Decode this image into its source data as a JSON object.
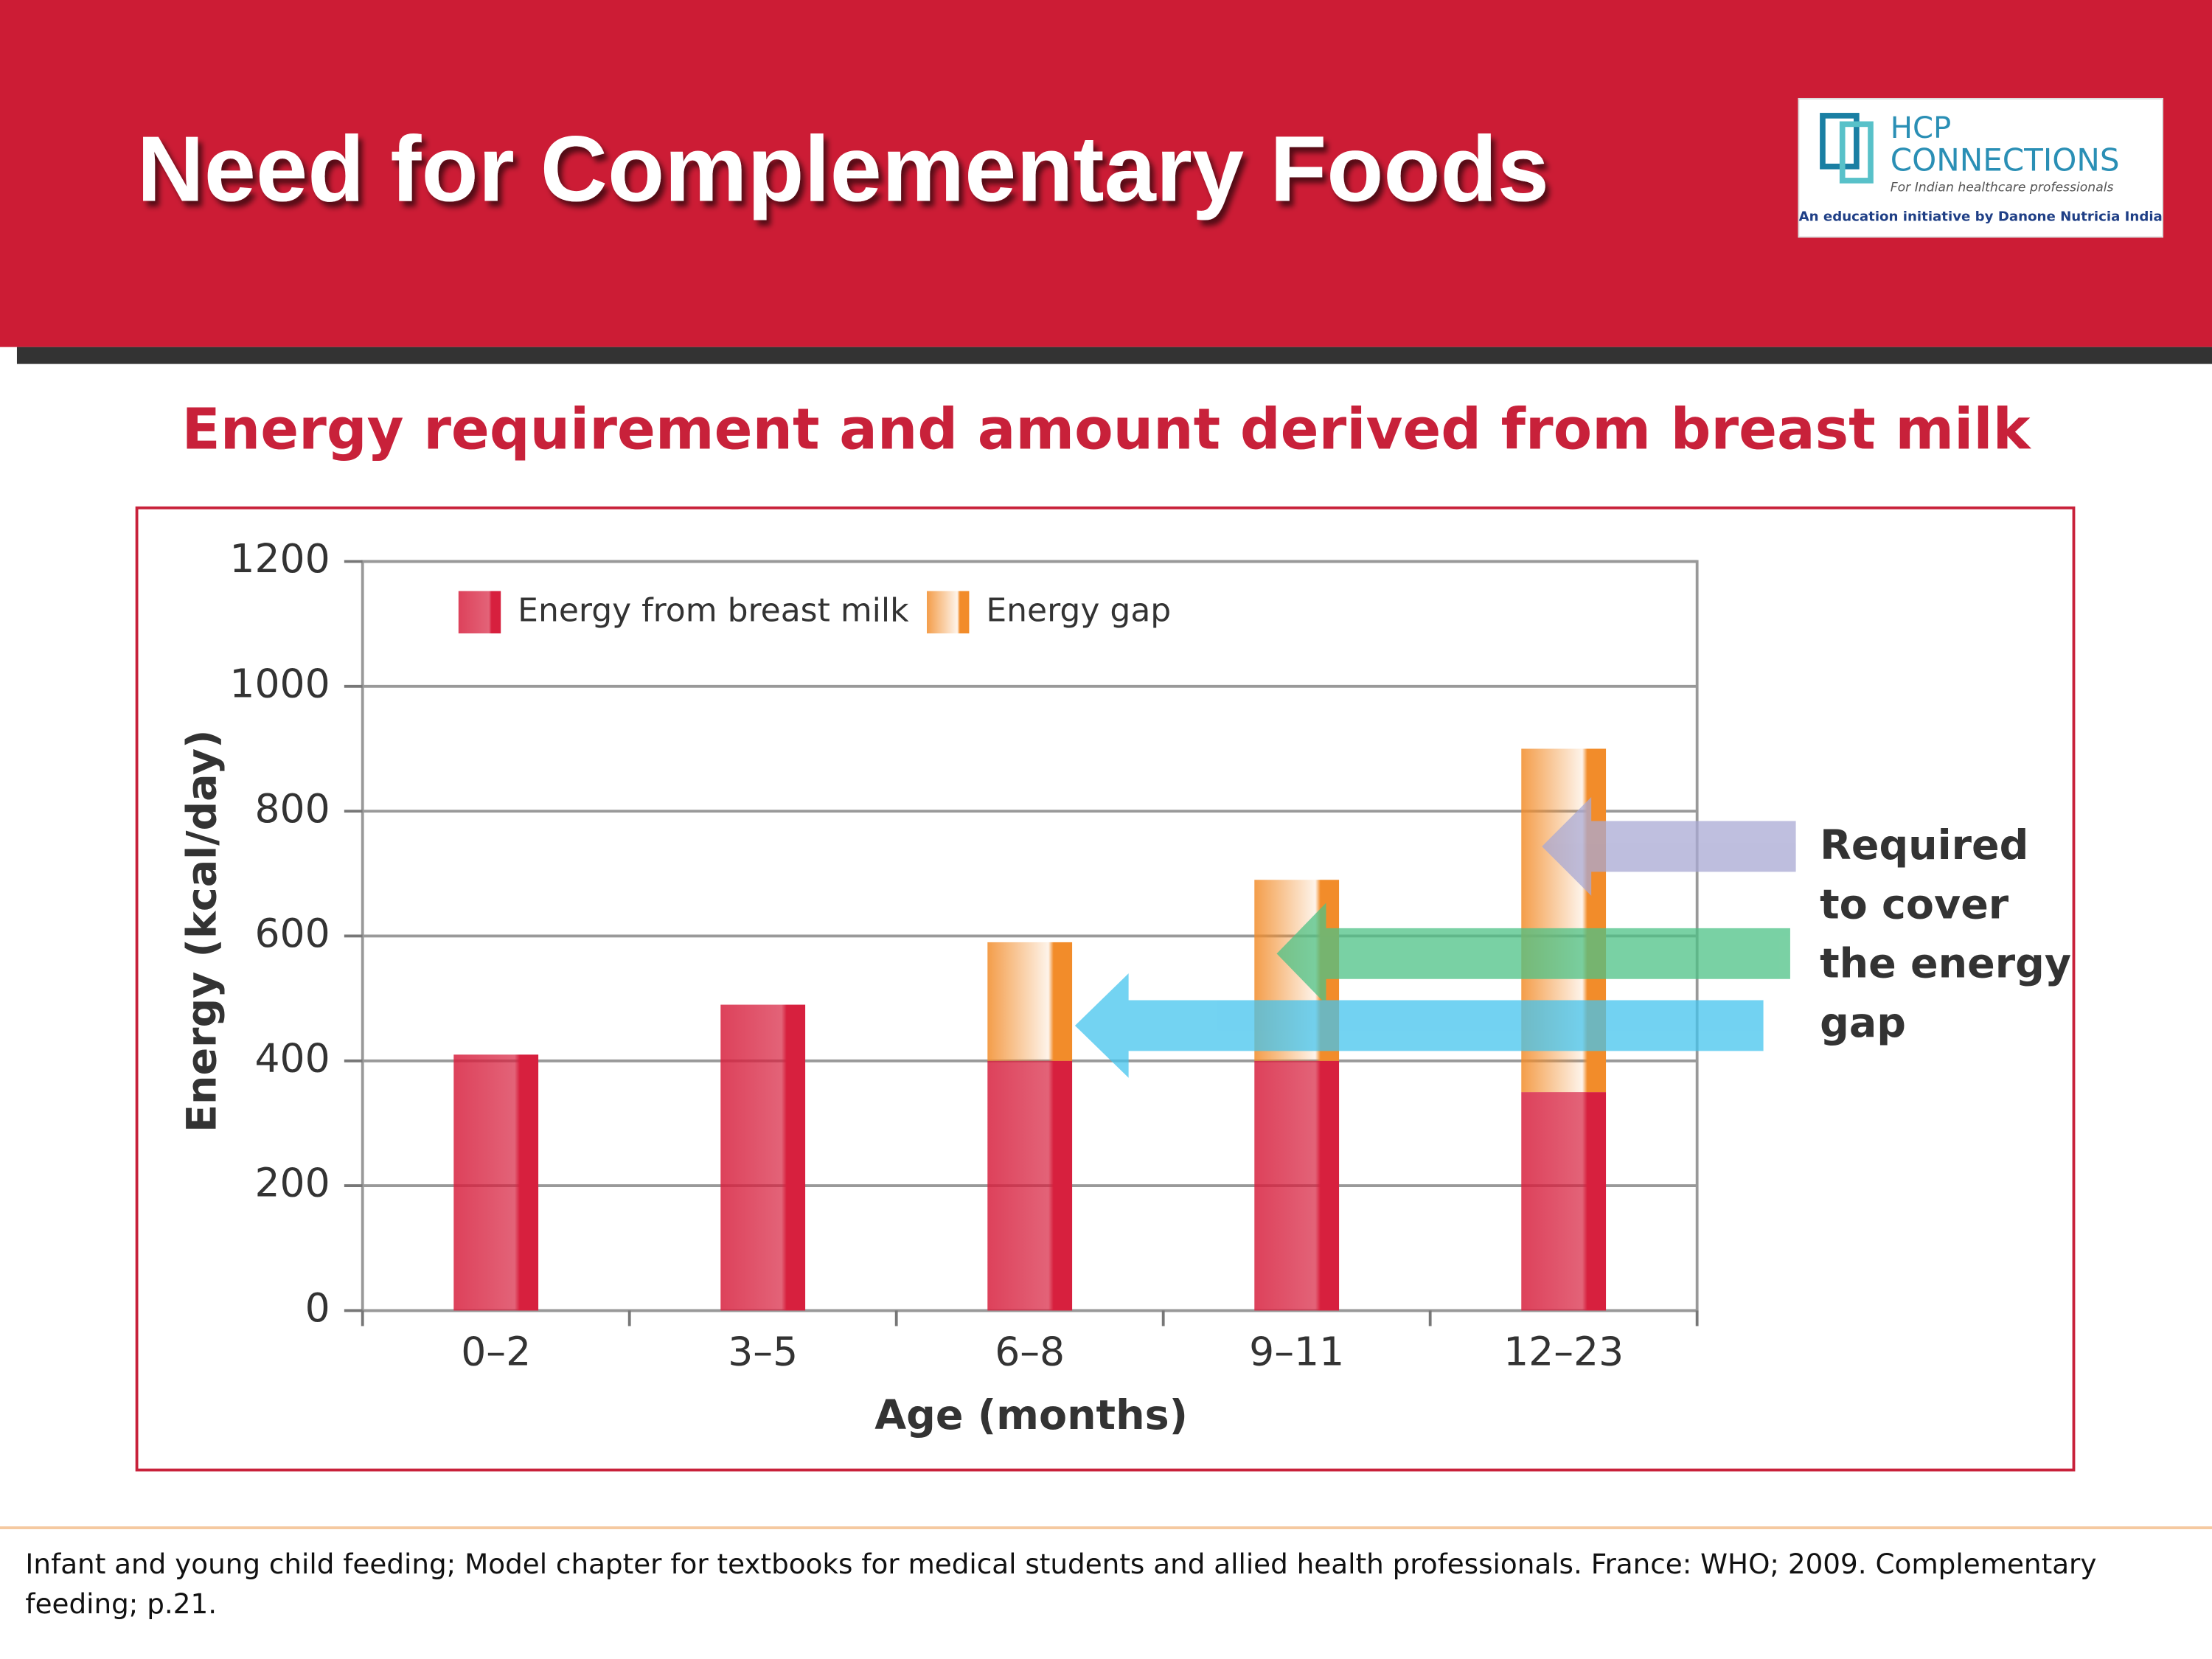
{
  "header": {
    "title": "Need for Complementary Foods"
  },
  "logo": {
    "line1": "HCP",
    "line2": "CONNECTIONS",
    "tagline": "For Indian healthcare professionals",
    "note": "An education initiative by Danone Nutricia India"
  },
  "chart_data": {
    "type": "stacked-bar",
    "title": "Energy requirement and amount derived from breast milk",
    "x_label": "Age (months)",
    "y_label": "Energy (kcal/day)",
    "categories": [
      "0–2",
      "3–5",
      "6–8",
      "9–11",
      "12–23"
    ],
    "series": [
      {
        "name": "Energy from breast milk",
        "color": "#d7203e",
        "values": [
          410,
          490,
          400,
          400,
          350
        ]
      },
      {
        "name": "Energy gap",
        "color": "#f28c2a",
        "values": [
          null,
          null,
          190,
          290,
          550
        ]
      }
    ],
    "ylim": [
      0,
      1200
    ],
    "yticks": [
      0,
      200,
      400,
      600,
      800,
      1000,
      1200
    ],
    "grid": true,
    "legend": "top-left",
    "annotation": [
      "Required",
      "to cover",
      "the energy",
      "gap"
    ]
  },
  "footer": {
    "lines": [
      "Infant and young child feeding; Model chapter for textbooks for medical students and allied health professionals. France: WHO; 2009. Complementary",
      "feeding; p.21."
    ]
  }
}
